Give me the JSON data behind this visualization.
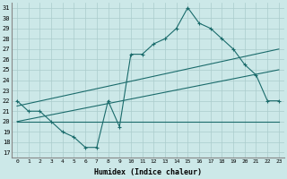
{
  "xlabel": "Humidex (Indice chaleur)",
  "xlim": [
    -0.5,
    23.5
  ],
  "ylim": [
    16.5,
    31.5
  ],
  "yticks": [
    17,
    18,
    19,
    20,
    21,
    22,
    23,
    24,
    25,
    26,
    27,
    28,
    29,
    30,
    31
  ],
  "xticks": [
    0,
    1,
    2,
    3,
    4,
    5,
    6,
    7,
    8,
    9,
    10,
    11,
    12,
    13,
    14,
    15,
    16,
    17,
    18,
    19,
    20,
    21,
    22,
    23
  ],
  "background_color": "#cce8e8",
  "grid_color": "#aacccc",
  "line_color": "#1a6b6b",
  "line1": {
    "x": [
      0,
      1,
      2,
      3,
      4,
      5,
      6,
      7,
      8,
      9,
      10,
      11,
      12,
      13,
      14,
      15,
      16,
      17,
      18,
      19,
      20,
      21,
      22,
      23
    ],
    "y": [
      22,
      21,
      21,
      20,
      19,
      18.5,
      17.5,
      17.5,
      22,
      19.5,
      26.5,
      26.5,
      27.5,
      28,
      29,
      31,
      29.5,
      29,
      28,
      27,
      25.5,
      24.5,
      22,
      22
    ]
  },
  "line2": {
    "x": [
      0,
      23
    ],
    "y": [
      21.5,
      27
    ]
  },
  "line3": {
    "x": [
      0,
      23
    ],
    "y": [
      20,
      25
    ]
  },
  "line4": {
    "x": [
      0,
      23
    ],
    "y": [
      20,
      20
    ]
  }
}
